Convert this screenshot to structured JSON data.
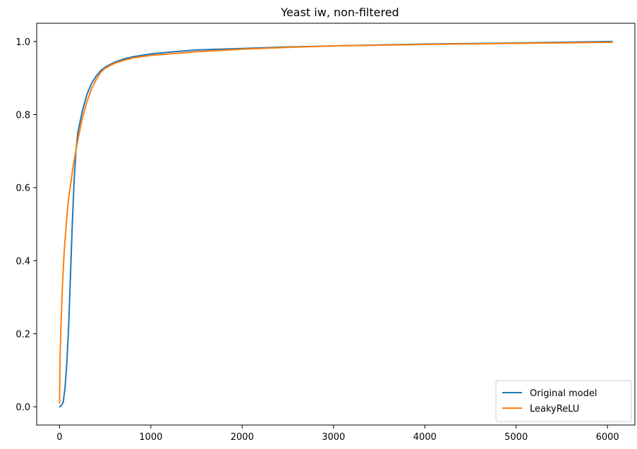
{
  "chart_data": {
    "type": "line",
    "title": "Yeast iw, non-filtered",
    "xlabel": "",
    "ylabel": "",
    "xlim": [
      -250,
      6300
    ],
    "ylim": [
      -0.05,
      1.05
    ],
    "xticks": [
      0,
      1000,
      2000,
      3000,
      4000,
      5000,
      6000
    ],
    "yticks": [
      0.0,
      0.2,
      0.4,
      0.6,
      0.8,
      1.0
    ],
    "grid": false,
    "legend": "bottom-right",
    "series": [
      {
        "name": "Original model",
        "color": "#1f77b4",
        "x": [
          0,
          20,
          40,
          60,
          80,
          100,
          120,
          140,
          160,
          180,
          200,
          250,
          300,
          350,
          400,
          450,
          500,
          600,
          700,
          800,
          1000,
          1200,
          1500,
          2000,
          2500,
          3000,
          4000,
          5000,
          6050
        ],
        "y": [
          0.0,
          0.003,
          0.012,
          0.05,
          0.12,
          0.22,
          0.36,
          0.5,
          0.62,
          0.7,
          0.75,
          0.81,
          0.855,
          0.885,
          0.905,
          0.92,
          0.93,
          0.943,
          0.952,
          0.958,
          0.966,
          0.971,
          0.977,
          0.981,
          0.985,
          0.988,
          0.993,
          0.996,
          1.0
        ]
      },
      {
        "name": "LeakyReLU",
        "color": "#ff7f0e",
        "x": [
          0,
          5,
          15,
          30,
          50,
          80,
          100,
          150,
          200,
          250,
          300,
          350,
          400,
          450,
          500,
          600,
          700,
          800,
          1000,
          1200,
          1500,
          2000,
          2500,
          3000,
          4000,
          5000,
          6050
        ],
        "y": [
          0.01,
          0.12,
          0.22,
          0.32,
          0.42,
          0.52,
          0.57,
          0.66,
          0.73,
          0.79,
          0.835,
          0.87,
          0.895,
          0.915,
          0.927,
          0.94,
          0.948,
          0.955,
          0.962,
          0.966,
          0.972,
          0.979,
          0.984,
          0.988,
          0.992,
          0.995,
          0.998
        ]
      }
    ]
  }
}
